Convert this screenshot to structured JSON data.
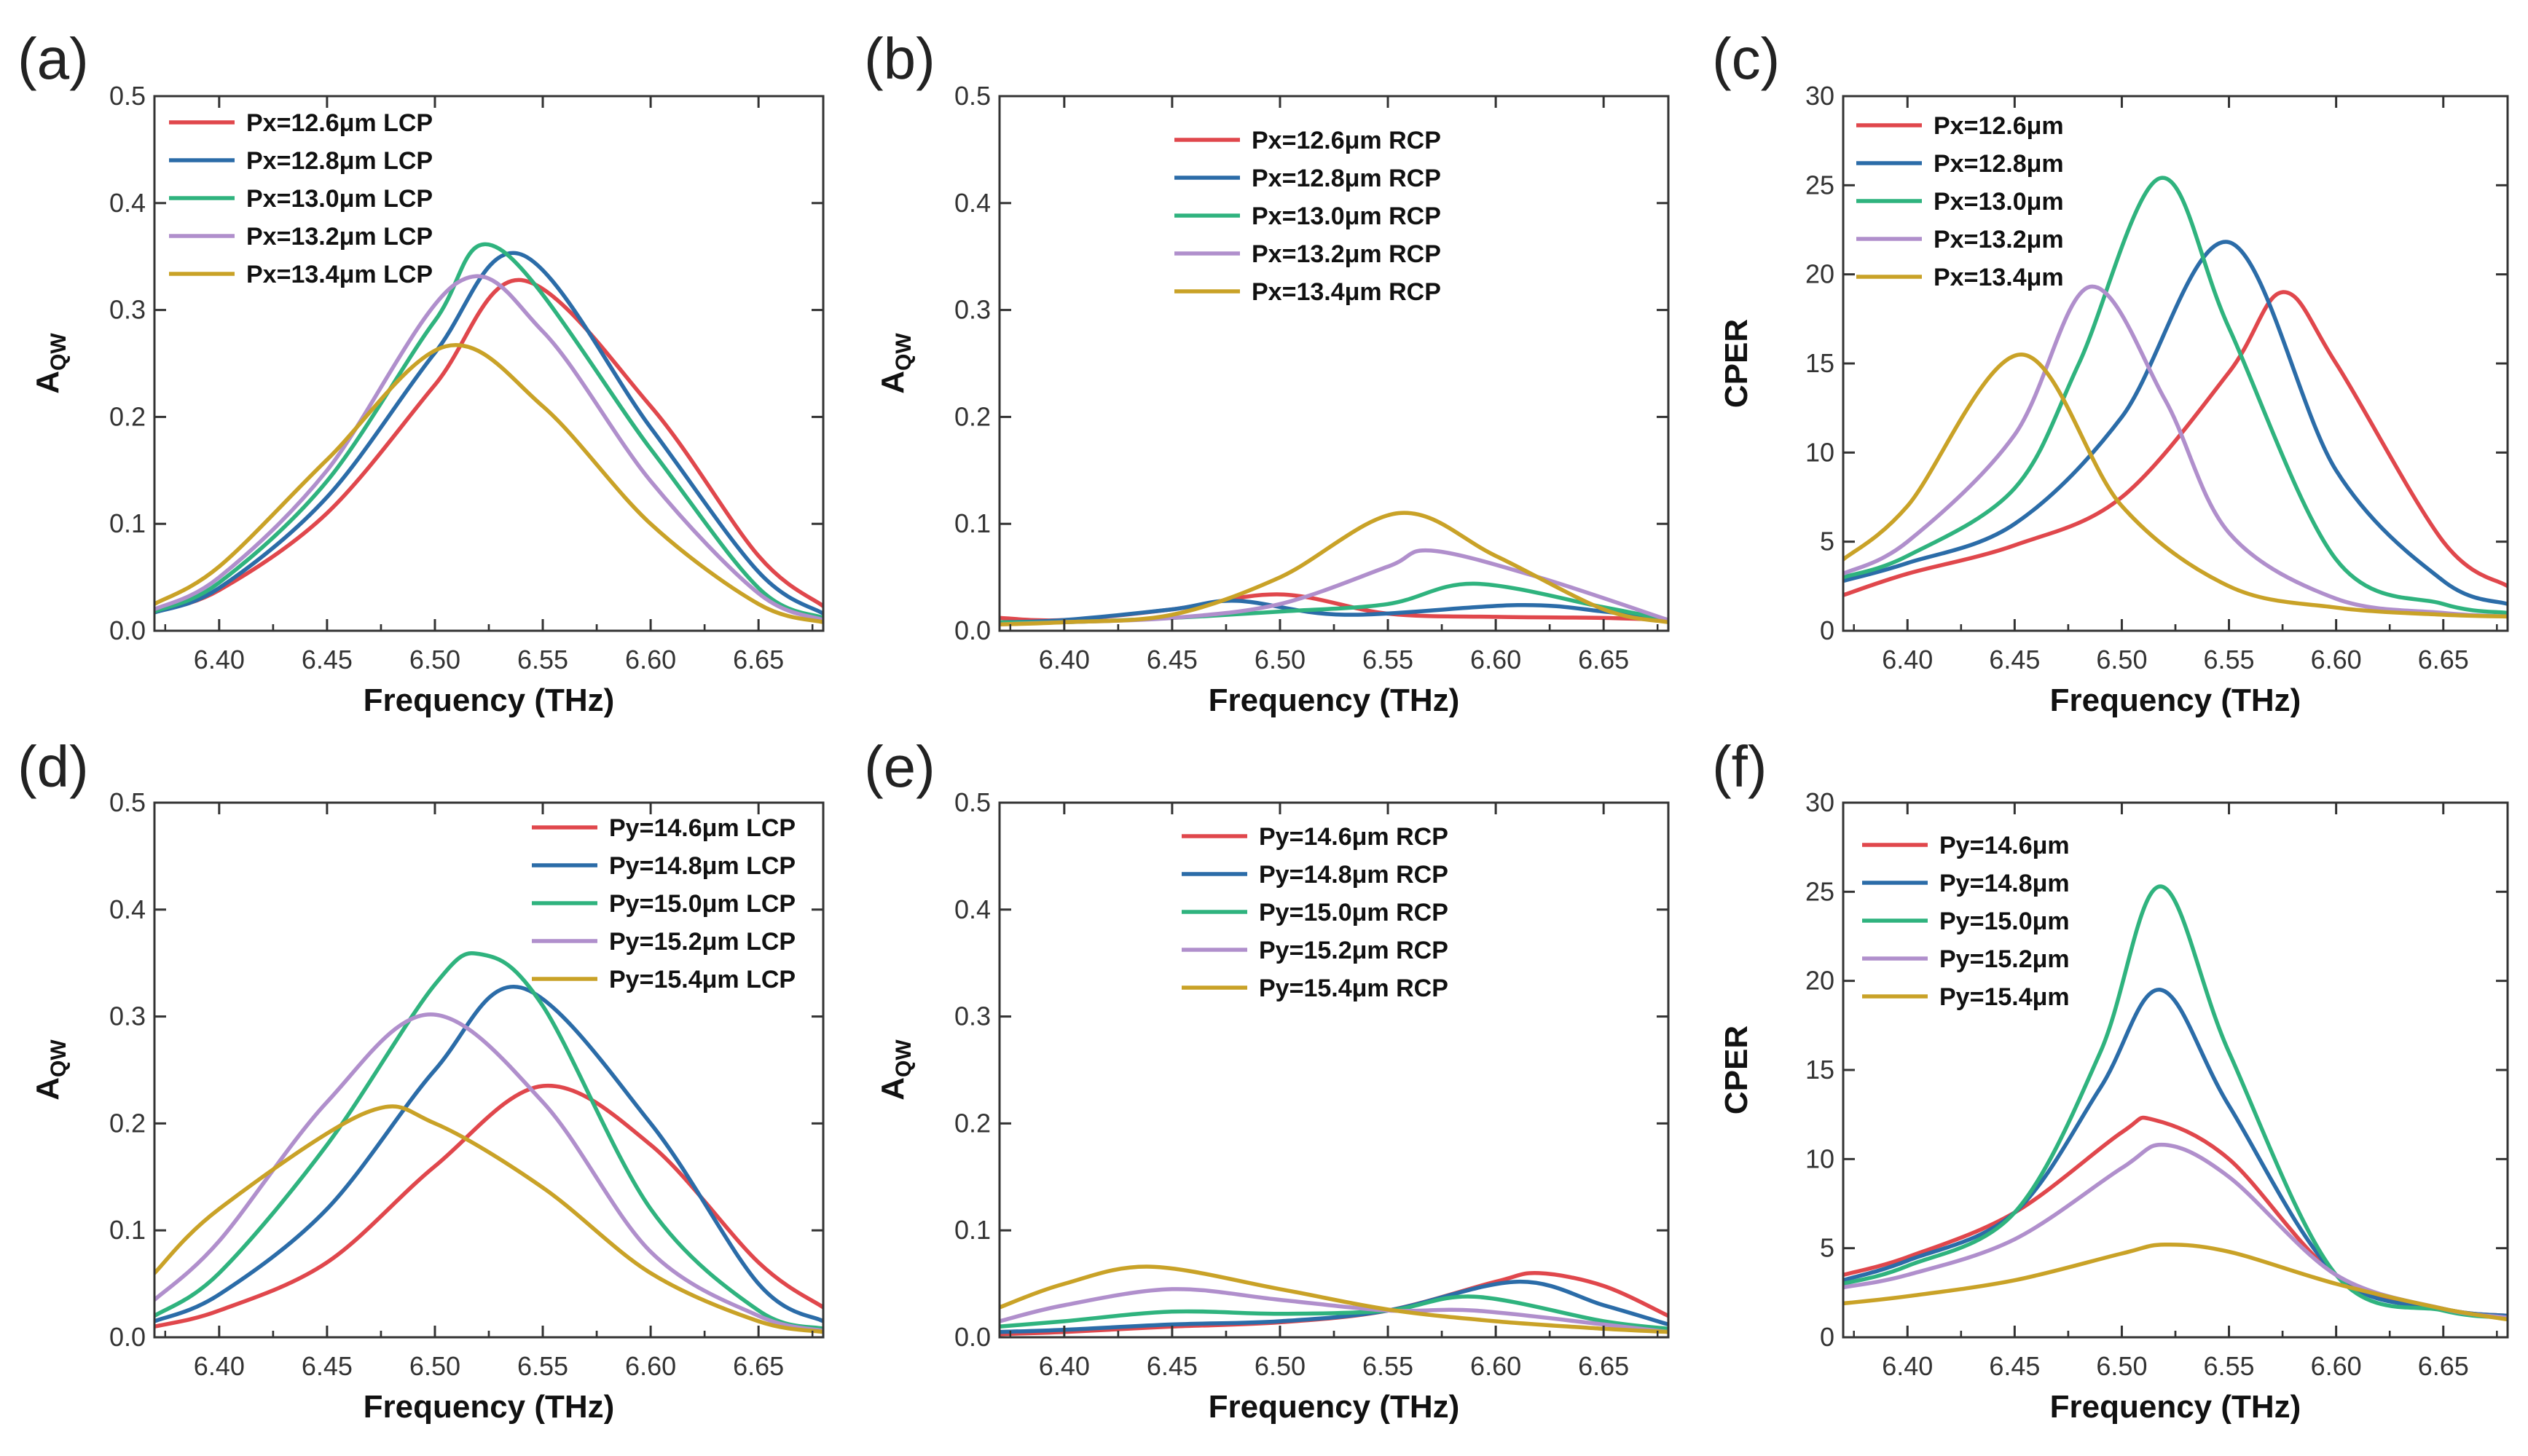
{
  "figure": {
    "colors": {
      "red": "#e0474c",
      "blue": "#2b6ca8",
      "green": "#2fb37e",
      "purple": "#b08fcc",
      "gold": "#c9a227"
    },
    "shared_xlabel": "Frequency (THz)"
  },
  "chart_data": [
    {
      "id": "a",
      "panel_label": "(a)",
      "type": "line",
      "xlabel": "Frequency (THz)",
      "ylabel": "A",
      "ylabel_sub": "QW",
      "xlim": [
        6.37,
        6.68
      ],
      "ylim": [
        0,
        0.5
      ],
      "xticks": [
        6.4,
        6.45,
        6.5,
        6.55,
        6.6,
        6.65
      ],
      "xtick_labels": [
        "6.40",
        "6.45",
        "6.50",
        "6.55",
        "6.60",
        "6.65"
      ],
      "yticks": [
        0.0,
        0.1,
        0.2,
        0.3,
        0.4,
        0.5
      ],
      "ytick_labels": [
        "0.0",
        "0.1",
        "0.2",
        "0.3",
        "0.4",
        "0.5"
      ],
      "legend_position": "top-left",
      "series": [
        {
          "name": "Px=12.6μm LCP",
          "color": "#e0474c",
          "x": [
            6.37,
            6.4,
            6.45,
            6.5,
            6.54,
            6.6,
            6.65,
            6.68
          ],
          "y": [
            0.018,
            0.038,
            0.11,
            0.23,
            0.328,
            0.21,
            0.07,
            0.023
          ]
        },
        {
          "name": "Px=12.8μm LCP",
          "color": "#2b6ca8",
          "x": [
            6.37,
            6.4,
            6.45,
            6.5,
            6.54,
            6.6,
            6.65,
            6.68
          ],
          "y": [
            0.017,
            0.04,
            0.125,
            0.26,
            0.352,
            0.19,
            0.055,
            0.016
          ]
        },
        {
          "name": "Px=13.0μm LCP",
          "color": "#2fb37e",
          "x": [
            6.37,
            6.4,
            6.45,
            6.5,
            6.53,
            6.6,
            6.65,
            6.68
          ],
          "y": [
            0.018,
            0.045,
            0.14,
            0.29,
            0.357,
            0.17,
            0.04,
            0.012
          ]
        },
        {
          "name": "Px=13.2μm LCP",
          "color": "#b08fcc",
          "x": [
            6.37,
            6.4,
            6.45,
            6.51,
            6.55,
            6.6,
            6.65,
            6.68
          ],
          "y": [
            0.02,
            0.05,
            0.15,
            0.325,
            0.28,
            0.14,
            0.035,
            0.01
          ]
        },
        {
          "name": "Px=13.4μm LCP",
          "color": "#c9a227",
          "x": [
            6.37,
            6.4,
            6.45,
            6.505,
            6.55,
            6.6,
            6.65,
            6.68
          ],
          "y": [
            0.025,
            0.06,
            0.16,
            0.266,
            0.21,
            0.1,
            0.025,
            0.008
          ]
        }
      ]
    },
    {
      "id": "b",
      "panel_label": "(b)",
      "type": "line",
      "xlabel": "Frequency (THz)",
      "ylabel": "A",
      "ylabel_sub": "QW",
      "xlim": [
        6.37,
        6.68
      ],
      "ylim": [
        0,
        0.5
      ],
      "xticks": [
        6.4,
        6.45,
        6.5,
        6.55,
        6.6,
        6.65
      ],
      "xtick_labels": [
        "6.40",
        "6.45",
        "6.50",
        "6.55",
        "6.60",
        "6.65"
      ],
      "yticks": [
        0.0,
        0.1,
        0.2,
        0.3,
        0.4,
        0.5
      ],
      "ytick_labels": [
        "0.0",
        "0.1",
        "0.2",
        "0.3",
        "0.4",
        "0.5"
      ],
      "legend_position": "top-center",
      "series": [
        {
          "name": "Px=12.6μm RCP",
          "color": "#e0474c",
          "x": [
            6.37,
            6.4,
            6.45,
            6.5,
            6.55,
            6.6,
            6.65,
            6.68
          ],
          "y": [
            0.012,
            0.01,
            0.02,
            0.034,
            0.016,
            0.013,
            0.012,
            0.01
          ]
        },
        {
          "name": "Px=12.8μm RCP",
          "color": "#2b6ca8",
          "x": [
            6.37,
            6.4,
            6.45,
            6.48,
            6.53,
            6.61,
            6.65,
            6.68
          ],
          "y": [
            0.008,
            0.01,
            0.02,
            0.028,
            0.015,
            0.024,
            0.018,
            0.01
          ]
        },
        {
          "name": "Px=13.0μm RCP",
          "color": "#2fb37e",
          "x": [
            6.37,
            6.4,
            6.45,
            6.5,
            6.55,
            6.59,
            6.65,
            6.68
          ],
          "y": [
            0.008,
            0.008,
            0.012,
            0.018,
            0.025,
            0.044,
            0.022,
            0.01
          ]
        },
        {
          "name": "Px=13.2μm RCP",
          "color": "#b08fcc",
          "x": [
            6.37,
            6.4,
            6.45,
            6.5,
            6.55,
            6.57,
            6.62,
            6.68
          ],
          "y": [
            0.006,
            0.008,
            0.012,
            0.025,
            0.06,
            0.075,
            0.05,
            0.01
          ]
        },
        {
          "name": "Px=13.4μm RCP",
          "color": "#c9a227",
          "x": [
            6.37,
            6.4,
            6.45,
            6.5,
            6.555,
            6.6,
            6.65,
            6.68
          ],
          "y": [
            0.006,
            0.008,
            0.015,
            0.05,
            0.11,
            0.07,
            0.02,
            0.008
          ]
        }
      ]
    },
    {
      "id": "c",
      "panel_label": "(c)",
      "type": "line",
      "xlabel": "Frequency (THz)",
      "ylabel": "CPER",
      "ylabel_sub": "",
      "xlim": [
        6.37,
        6.68
      ],
      "ylim": [
        0,
        30
      ],
      "xticks": [
        6.4,
        6.45,
        6.5,
        6.55,
        6.6,
        6.65
      ],
      "xtick_labels": [
        "6.40",
        "6.45",
        "6.50",
        "6.55",
        "6.60",
        "6.65"
      ],
      "yticks": [
        0,
        5,
        10,
        15,
        20,
        25,
        30
      ],
      "ytick_labels": [
        "0",
        "5",
        "10",
        "15",
        "20",
        "25",
        "30"
      ],
      "legend_position": "top-left",
      "series": [
        {
          "name": "Px=12.6μm",
          "color": "#e0474c",
          "x": [
            6.37,
            6.4,
            6.45,
            6.5,
            6.55,
            6.575,
            6.6,
            6.65,
            6.68
          ],
          "y": [
            2.0,
            3.2,
            4.8,
            7.5,
            14.5,
            19.0,
            15.0,
            5.0,
            2.5
          ]
        },
        {
          "name": "Px=12.8μm",
          "color": "#2b6ca8",
          "x": [
            6.37,
            6.4,
            6.45,
            6.5,
            6.55,
            6.6,
            6.65,
            6.68
          ],
          "y": [
            2.8,
            3.8,
            6.0,
            12.0,
            21.8,
            9.0,
            2.8,
            1.5
          ]
        },
        {
          "name": "Px=13.0μm",
          "color": "#2fb37e",
          "x": [
            6.37,
            6.4,
            6.45,
            6.48,
            6.518,
            6.55,
            6.6,
            6.65,
            6.68
          ],
          "y": [
            3.0,
            4.2,
            8.0,
            15.0,
            25.4,
            17.0,
            4.0,
            1.5,
            1.0
          ]
        },
        {
          "name": "Px=13.2μm",
          "color": "#b08fcc",
          "x": [
            6.37,
            6.4,
            6.45,
            6.485,
            6.52,
            6.55,
            6.6,
            6.65,
            6.68
          ],
          "y": [
            3.2,
            5.0,
            11.0,
            19.3,
            13.0,
            5.5,
            1.8,
            1.0,
            0.8
          ]
        },
        {
          "name": "Px=13.4μm",
          "color": "#c9a227",
          "x": [
            6.37,
            6.4,
            6.453,
            6.5,
            6.55,
            6.6,
            6.65,
            6.68
          ],
          "y": [
            4.0,
            7.0,
            15.5,
            7.0,
            2.5,
            1.3,
            0.9,
            0.8
          ]
        }
      ]
    },
    {
      "id": "d",
      "panel_label": "(d)",
      "type": "line",
      "xlabel": "Frequency (THz)",
      "ylabel": "A",
      "ylabel_sub": "QW",
      "xlim": [
        6.37,
        6.68
      ],
      "ylim": [
        0,
        0.5
      ],
      "xticks": [
        6.4,
        6.45,
        6.5,
        6.55,
        6.6,
        6.65
      ],
      "xtick_labels": [
        "6.40",
        "6.45",
        "6.50",
        "6.55",
        "6.60",
        "6.65"
      ],
      "yticks": [
        0.0,
        0.1,
        0.2,
        0.3,
        0.4,
        0.5
      ],
      "ytick_labels": [
        "0.0",
        "0.1",
        "0.2",
        "0.3",
        "0.4",
        "0.5"
      ],
      "legend_position": "top-right",
      "series": [
        {
          "name": "Py=14.6μm LCP",
          "color": "#e0474c",
          "x": [
            6.37,
            6.4,
            6.45,
            6.5,
            6.55,
            6.6,
            6.65,
            6.68
          ],
          "y": [
            0.01,
            0.025,
            0.07,
            0.16,
            0.235,
            0.18,
            0.07,
            0.028
          ]
        },
        {
          "name": "Py=14.8μm LCP",
          "color": "#2b6ca8",
          "x": [
            6.37,
            6.4,
            6.45,
            6.5,
            6.54,
            6.6,
            6.65,
            6.68
          ],
          "y": [
            0.015,
            0.04,
            0.12,
            0.25,
            0.327,
            0.2,
            0.05,
            0.015
          ]
        },
        {
          "name": "Py=15.0μm LCP",
          "color": "#2fb37e",
          "x": [
            6.37,
            6.4,
            6.45,
            6.5,
            6.522,
            6.55,
            6.6,
            6.65,
            6.68
          ],
          "y": [
            0.02,
            0.06,
            0.18,
            0.33,
            0.358,
            0.31,
            0.12,
            0.025,
            0.008
          ]
        },
        {
          "name": "Py=15.2μm LCP",
          "color": "#b08fcc",
          "x": [
            6.37,
            6.4,
            6.45,
            6.498,
            6.55,
            6.6,
            6.65,
            6.68
          ],
          "y": [
            0.035,
            0.09,
            0.22,
            0.302,
            0.22,
            0.08,
            0.02,
            0.006
          ]
        },
        {
          "name": "Py=15.4μm LCP",
          "color": "#c9a227",
          "x": [
            6.37,
            6.4,
            6.468,
            6.5,
            6.55,
            6.6,
            6.65,
            6.68
          ],
          "y": [
            0.06,
            0.12,
            0.21,
            0.2,
            0.14,
            0.06,
            0.015,
            0.005
          ]
        }
      ]
    },
    {
      "id": "e",
      "panel_label": "(e)",
      "type": "line",
      "xlabel": "Frequency (THz)",
      "ylabel": "A",
      "ylabel_sub": "QW",
      "xlim": [
        6.37,
        6.68
      ],
      "ylim": [
        0,
        0.5
      ],
      "xticks": [
        6.4,
        6.45,
        6.5,
        6.55,
        6.6,
        6.65
      ],
      "xtick_labels": [
        "6.40",
        "6.45",
        "6.50",
        "6.55",
        "6.60",
        "6.65"
      ],
      "yticks": [
        0.0,
        0.1,
        0.2,
        0.3,
        0.4,
        0.5
      ],
      "ytick_labels": [
        "0.0",
        "0.1",
        "0.2",
        "0.3",
        "0.4",
        "0.5"
      ],
      "legend_position": "top-center",
      "series": [
        {
          "name": "Py=14.6μm RCP",
          "color": "#e0474c",
          "x": [
            6.37,
            6.4,
            6.45,
            6.5,
            6.55,
            6.6,
            6.62,
            6.65,
            6.68
          ],
          "y": [
            0.003,
            0.005,
            0.01,
            0.014,
            0.025,
            0.052,
            0.06,
            0.048,
            0.02
          ]
        },
        {
          "name": "Py=14.8μm RCP",
          "color": "#2b6ca8",
          "x": [
            6.37,
            6.4,
            6.45,
            6.5,
            6.55,
            6.61,
            6.65,
            6.68
          ],
          "y": [
            0.005,
            0.007,
            0.012,
            0.015,
            0.025,
            0.052,
            0.03,
            0.012
          ]
        },
        {
          "name": "Py=15.0μm RCP",
          "color": "#2fb37e",
          "x": [
            6.37,
            6.4,
            6.45,
            6.5,
            6.55,
            6.59,
            6.65,
            6.68
          ],
          "y": [
            0.01,
            0.015,
            0.024,
            0.022,
            0.025,
            0.038,
            0.015,
            0.008
          ]
        },
        {
          "name": "Py=15.2μm RCP",
          "color": "#b08fcc",
          "x": [
            6.37,
            6.4,
            6.45,
            6.5,
            6.55,
            6.59,
            6.65,
            6.68
          ],
          "y": [
            0.015,
            0.03,
            0.045,
            0.035,
            0.025,
            0.025,
            0.012,
            0.005
          ]
        },
        {
          "name": "Py=15.4μm RCP",
          "color": "#c9a227",
          "x": [
            6.37,
            6.4,
            6.44,
            6.5,
            6.55,
            6.6,
            6.65,
            6.68
          ],
          "y": [
            0.028,
            0.05,
            0.066,
            0.045,
            0.026,
            0.015,
            0.008,
            0.005
          ]
        }
      ]
    },
    {
      "id": "f",
      "panel_label": "(f)",
      "type": "line",
      "xlabel": "Frequency (THz)",
      "ylabel": "CPER",
      "ylabel_sub": "",
      "xlim": [
        6.37,
        6.68
      ],
      "ylim": [
        0,
        30
      ],
      "xticks": [
        6.4,
        6.45,
        6.5,
        6.55,
        6.6,
        6.65
      ],
      "xtick_labels": [
        "6.40",
        "6.45",
        "6.50",
        "6.55",
        "6.60",
        "6.65"
      ],
      "yticks": [
        0,
        5,
        10,
        15,
        20,
        25,
        30
      ],
      "ytick_labels": [
        "0",
        "5",
        "10",
        "15",
        "20",
        "25",
        "30"
      ],
      "legend_position": "top-left",
      "series": [
        {
          "name": "Py=14.6μm",
          "color": "#e0474c",
          "x": [
            6.37,
            6.4,
            6.45,
            6.5,
            6.515,
            6.55,
            6.6,
            6.65,
            6.68
          ],
          "y": [
            3.5,
            4.5,
            7.0,
            11.5,
            12.2,
            10.0,
            3.5,
            1.6,
            1.2
          ]
        },
        {
          "name": "Py=14.8μm",
          "color": "#2b6ca8",
          "x": [
            6.37,
            6.4,
            6.45,
            6.49,
            6.518,
            6.55,
            6.6,
            6.65,
            6.68
          ],
          "y": [
            3.2,
            4.3,
            7.0,
            14.0,
            19.5,
            13.0,
            3.5,
            1.6,
            1.2
          ]
        },
        {
          "name": "Py=15.0μm",
          "color": "#2fb37e",
          "x": [
            6.37,
            6.4,
            6.45,
            6.49,
            6.518,
            6.55,
            6.6,
            6.65,
            6.68
          ],
          "y": [
            3.0,
            4.0,
            7.0,
            16.0,
            25.3,
            16.0,
            3.5,
            1.5,
            1.1
          ]
        },
        {
          "name": "Py=15.2μm",
          "color": "#b08fcc",
          "x": [
            6.37,
            6.4,
            6.45,
            6.5,
            6.52,
            6.55,
            6.6,
            6.65,
            6.68
          ],
          "y": [
            2.8,
            3.5,
            5.5,
            9.5,
            10.8,
            9.0,
            3.5,
            1.6,
            1.1
          ]
        },
        {
          "name": "Py=15.4μm",
          "color": "#c9a227",
          "x": [
            6.37,
            6.4,
            6.45,
            6.5,
            6.52,
            6.55,
            6.6,
            6.65,
            6.68
          ],
          "y": [
            1.9,
            2.3,
            3.2,
            4.7,
            5.2,
            4.8,
            3.0,
            1.6,
            1.0
          ]
        }
      ]
    }
  ]
}
